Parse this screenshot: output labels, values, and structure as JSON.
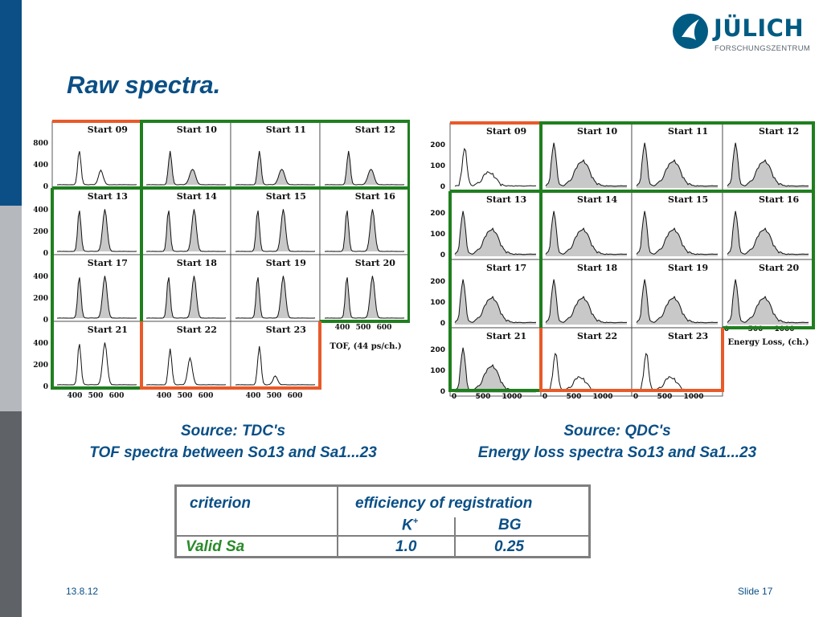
{
  "title": "Raw spectra.",
  "logo": {
    "name": "JÜLICH",
    "subtitle": "FORSCHUNGSZENTRUM"
  },
  "left_panel": {
    "caption_line1": "Source: TDC's",
    "caption_line2": "TOF spectra between So13 and Sa1...23",
    "axis_label": "TOF, (44 ps/ch.)",
    "x_ticks": [
      "400",
      "500",
      "600"
    ],
    "y_ticks_row1": [
      "800",
      "400",
      "0"
    ],
    "y_ticks_rows": [
      "400",
      "200",
      "0"
    ],
    "starts": [
      "Start 09",
      "Start 10",
      "Start 11",
      "Start 12",
      "Start 13",
      "Start 14",
      "Start 15",
      "Start 16",
      "Start 17",
      "Start 18",
      "Start 19",
      "Start 20",
      "Start 21",
      "Start 22",
      "Start 23"
    ]
  },
  "right_panel": {
    "caption_line1": "Source: QDC's",
    "caption_line2": "Energy loss spectra So13 and Sa1...23",
    "axis_label": "Energy Loss, (ch.)",
    "x_ticks_full": [
      "0",
      "500",
      "1000"
    ],
    "x_ticks_short": [
      "0",
      "500"
    ],
    "y_ticks": [
      "200",
      "100",
      "0"
    ],
    "starts": [
      "Start 09",
      "Start 10",
      "Start 11",
      "Start 12",
      "Start 13",
      "Start 14",
      "Start 15",
      "Start 16",
      "Start 17",
      "Start 18",
      "Start 19",
      "Start 20",
      "Start 21",
      "Start 22",
      "Start 23"
    ]
  },
  "table": {
    "header_criterion": "criterion",
    "header_efficiency": "efficiency of registration",
    "col_k": "K",
    "col_k_sup": "+",
    "col_bg": "BG",
    "row_label": "Valid Sa",
    "row_k": "1.0",
    "row_bg": "0.25"
  },
  "footer": {
    "date": "13.8.12",
    "slide": "Slide 17"
  },
  "colors": {
    "title": "#0a4f86",
    "valid": "#2a8a2a",
    "green_box": "#1f7f1f",
    "red_box": "#e85a2a"
  }
}
